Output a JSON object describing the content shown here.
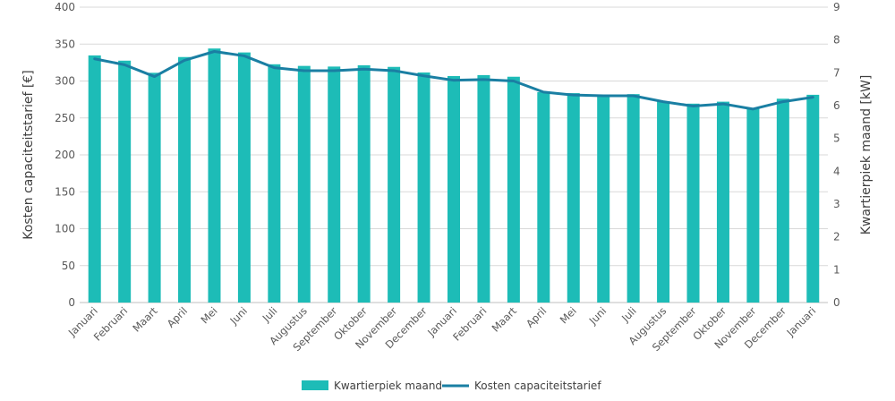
{
  "chart_data": {
    "type": "bar+line",
    "categories": [
      "Januari",
      "Februari",
      "Maart",
      "April",
      "Mei",
      "Juni",
      "Juli",
      "Augustus",
      "September",
      "Oktober",
      "November",
      "December",
      "Januari",
      "Februari",
      "Maart",
      "April",
      "Mei",
      "Juni",
      "Juli",
      "Augustus",
      "September",
      "Oktober",
      "November",
      "December",
      "Januari"
    ],
    "series": [
      {
        "name": "Kwartierpiek maand",
        "type": "bar",
        "axis": "right",
        "color": "#1dbcb7",
        "values": [
          7.53,
          7.37,
          7.0,
          7.48,
          7.74,
          7.62,
          7.26,
          7.21,
          7.19,
          7.23,
          7.18,
          7.01,
          6.9,
          6.93,
          6.88,
          6.41,
          6.38,
          6.34,
          6.35,
          6.13,
          6.06,
          6.12,
          5.92,
          6.21,
          6.33
        ]
      },
      {
        "name": "Kosten capaciteitstarief",
        "type": "line",
        "axis": "left",
        "color": "#1a7fa3",
        "values": [
          330,
          322,
          306,
          328,
          340,
          334,
          318,
          314,
          314,
          316,
          314,
          307,
          301,
          302,
          300,
          285,
          281,
          280,
          280,
          272,
          266,
          269,
          262,
          272,
          278
        ]
      }
    ],
    "ylabel_left": "Kosten capaciteitstarief [€]",
    "ylabel_right": "Kwartierpiek maand [kW]",
    "ylim_left": [
      0,
      400
    ],
    "ylim_right": [
      0,
      9
    ],
    "yticks_left": [
      "0",
      "50",
      "100",
      "150",
      "200",
      "250",
      "300",
      "350",
      "400"
    ],
    "yticks_right": [
      "0",
      "1",
      "2",
      "3",
      "4",
      "5",
      "6",
      "7",
      "8",
      "9"
    ],
    "grid": true,
    "legend": "bottom-center",
    "legend_entries": [
      "Kwartierpiek maand",
      "Kosten capaciteitstarief"
    ]
  }
}
